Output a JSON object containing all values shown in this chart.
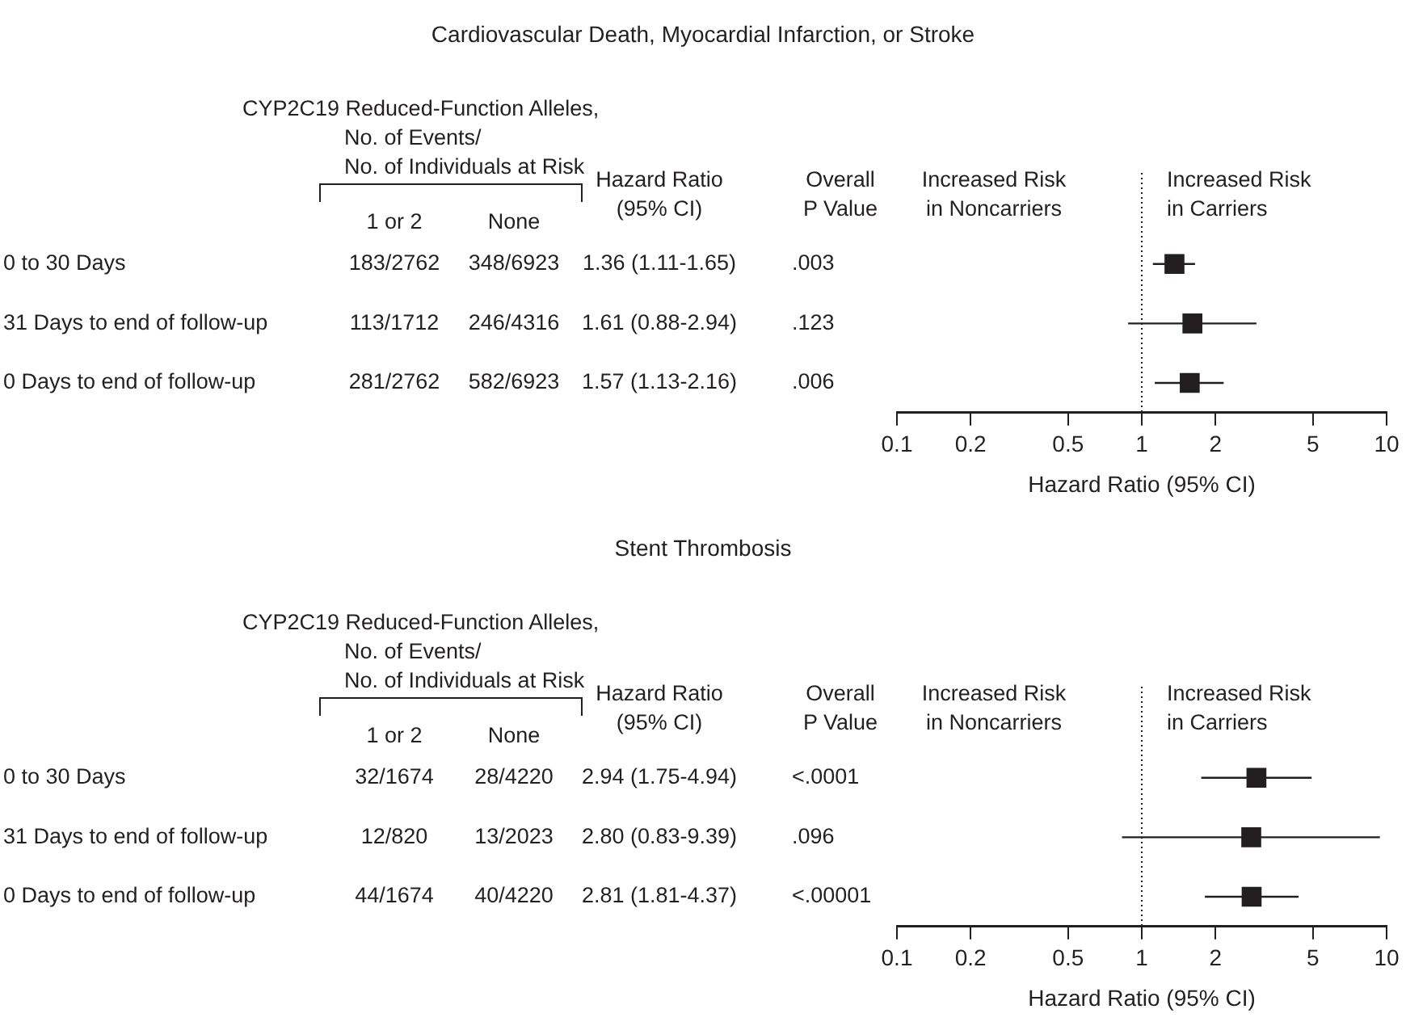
{
  "chart_data": [
    {
      "type": "scatter",
      "orientation": "horizontal",
      "title": "Cardiovascular Death, Myocardial Infarction, or Stroke",
      "xlabel": "Hazard Ratio (95% CI)",
      "categories": [
        "0 to 30 Days",
        "31 Days to end of follow-up",
        "0 Days to end of follow-up"
      ],
      "series": [
        {
          "color": "#231f20",
          "values": [
            1.36,
            1.61,
            1.57
          ],
          "errors": [
            [
              1.11,
              1.65
            ],
            [
              0.88,
              2.94
            ],
            [
              1.13,
              2.16
            ]
          ]
        }
      ],
      "marker": "square",
      "log": "x",
      "xlim": [
        0.1,
        10
      ],
      "xticks": [
        0.1,
        0.2,
        0.5,
        1,
        2,
        5,
        10
      ],
      "tick_labels": "x",
      "ref_lines": [
        {
          "axis": "x",
          "value": 1,
          "line_style": "dotted",
          "color": "#231f20"
        }
      ],
      "annotations": [
        "CYP2C19 Reduced-Function Alleles,",
        "No. of Events/",
        "No. of Individuals at Risk",
        "1 or 2",
        "None",
        "Hazard Ratio",
        "(95% CI)",
        "Overall",
        "P Value",
        "Increased Risk",
        "in Noncarriers",
        "Increased Risk",
        "in Carriers",
        "183/2762",
        "348/6923",
        "1.36 (1.11-1.65)",
        ".003",
        "113/1712",
        "246/4316",
        "1.61 (0.88-2.94)",
        ".123",
        "281/2762",
        "582/6923",
        "1.57 (1.13-2.16)",
        ".006"
      ]
    },
    {
      "type": "scatter",
      "orientation": "horizontal",
      "title": "Stent Thrombosis",
      "xlabel": "Hazard Ratio (95% CI)",
      "categories": [
        "0 to 30 Days",
        "31 Days to end of follow-up",
        "0 Days to end of follow-up"
      ],
      "series": [
        {
          "color": "#231f20",
          "values": [
            2.94,
            2.8,
            2.81
          ],
          "errors": [
            [
              1.75,
              4.94
            ],
            [
              0.83,
              9.39
            ],
            [
              1.81,
              4.37
            ]
          ]
        }
      ],
      "marker": "square",
      "log": "x",
      "xlim": [
        0.1,
        10
      ],
      "xticks": [
        0.1,
        0.2,
        0.5,
        1,
        2,
        5,
        10
      ],
      "tick_labels": "x",
      "ref_lines": [
        {
          "axis": "x",
          "value": 1,
          "line_style": "dotted",
          "color": "#231f20"
        }
      ],
      "annotations": [
        "CYP2C19 Reduced-Function Alleles,",
        "No. of Events/",
        "No. of Individuals at Risk",
        "1 or 2",
        "None",
        "Hazard Ratio",
        "(95% CI)",
        "Overall",
        "P Value",
        "Increased Risk",
        "in Noncarriers",
        "Increased Risk",
        "in Carriers",
        "32/1674",
        "28/4220",
        "2.94 (1.75-4.94)",
        "<.0001",
        "12/820",
        "13/2023",
        "2.80 (0.83-9.39)",
        ".096",
        "44/1674",
        "40/4220",
        "2.81 (1.81-4.37)",
        "<.00001"
      ]
    }
  ]
}
